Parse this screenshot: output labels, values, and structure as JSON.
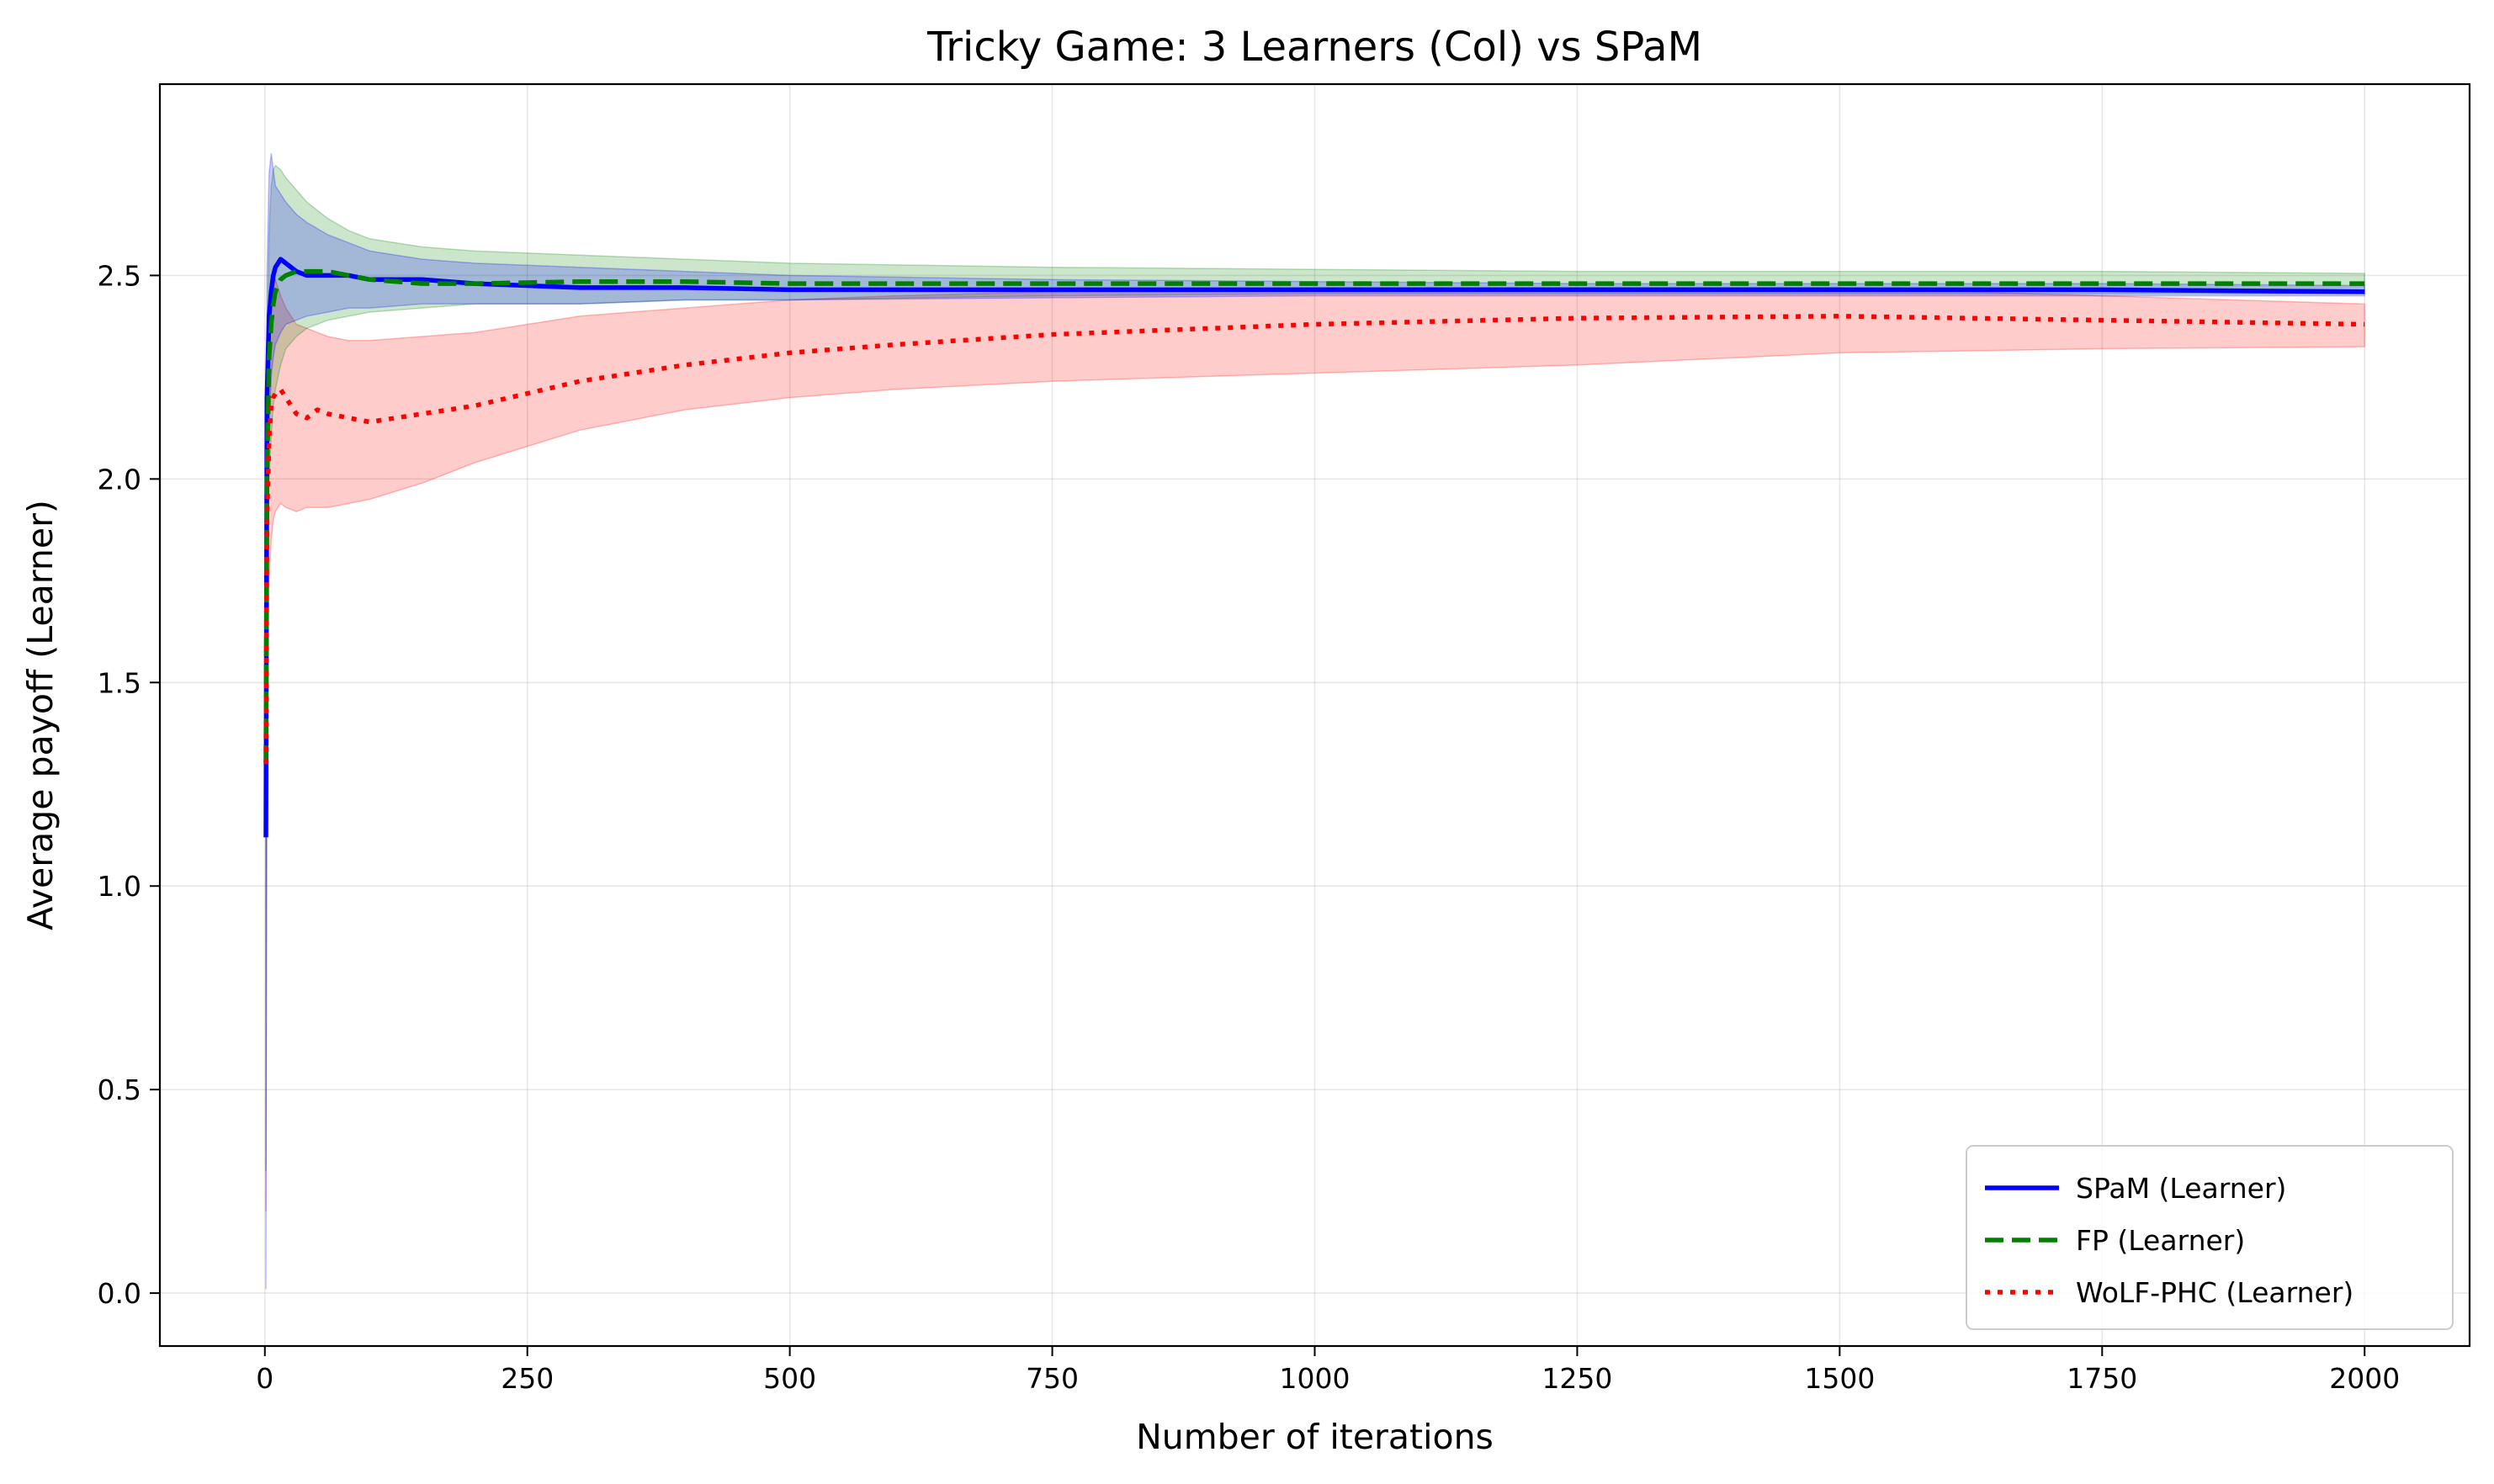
{
  "chart_data": {
    "type": "line",
    "title": "Tricky Game: 3 Learners (Col) vs SPaM",
    "xlabel": "Number of iterations",
    "ylabel": "Average payoff (Learner)",
    "xlim": [
      -100,
      2100
    ],
    "ylim": [
      -0.13,
      2.97
    ],
    "xticks": [
      0,
      250,
      500,
      750,
      1000,
      1250,
      1500,
      1750,
      2000
    ],
    "yticks": [
      0.0,
      0.5,
      1.0,
      1.5,
      2.0,
      2.5
    ],
    "xtick_labels": [
      "0",
      "250",
      "500",
      "750",
      "1000",
      "1250",
      "1500",
      "1750",
      "2000"
    ],
    "ytick_labels": [
      "0.0",
      "0.5",
      "1.0",
      "1.5",
      "2.0",
      "2.5"
    ],
    "grid": true,
    "legend_position": "lower-right",
    "series": [
      {
        "name": "SPaM (Learner)",
        "color": "#0000ff",
        "style": "solid",
        "band_color": "#0000ff",
        "x": [
          1,
          2,
          4,
          6,
          8,
          10,
          15,
          20,
          30,
          40,
          60,
          80,
          100,
          150,
          200,
          300,
          400,
          500,
          750,
          1000,
          1250,
          1500,
          1750,
          2000
        ],
        "y": [
          1.12,
          2.2,
          2.4,
          2.46,
          2.5,
          2.52,
          2.54,
          2.53,
          2.51,
          2.5,
          2.5,
          2.5,
          2.49,
          2.49,
          2.48,
          2.47,
          2.47,
          2.465,
          2.465,
          2.465,
          2.465,
          2.465,
          2.465,
          2.46
        ],
        "upper": [
          1.12,
          2.5,
          2.75,
          2.8,
          2.76,
          2.72,
          2.7,
          2.68,
          2.65,
          2.63,
          2.6,
          2.58,
          2.56,
          2.54,
          2.53,
          2.52,
          2.51,
          2.5,
          2.49,
          2.485,
          2.48,
          2.48,
          2.48,
          2.475
        ],
        "lower": [
          0.01,
          1.6,
          2.1,
          2.25,
          2.3,
          2.33,
          2.36,
          2.38,
          2.39,
          2.4,
          2.41,
          2.42,
          2.42,
          2.43,
          2.43,
          2.43,
          2.44,
          2.44,
          2.445,
          2.45,
          2.45,
          2.45,
          2.45,
          2.45
        ]
      },
      {
        "name": "FP (Learner)",
        "color": "#008000",
        "style": "dashed",
        "band_color": "#008000",
        "x": [
          1,
          2,
          4,
          6,
          8,
          10,
          15,
          20,
          30,
          40,
          60,
          80,
          100,
          150,
          200,
          300,
          400,
          500,
          750,
          1000,
          1250,
          1500,
          1750,
          2000
        ],
        "y": [
          1.3,
          2.0,
          2.3,
          2.38,
          2.43,
          2.46,
          2.49,
          2.5,
          2.51,
          2.51,
          2.51,
          2.5,
          2.49,
          2.48,
          2.48,
          2.485,
          2.485,
          2.48,
          2.48,
          2.48,
          2.48,
          2.48,
          2.48,
          2.48
        ],
        "upper": [
          1.3,
          2.3,
          2.6,
          2.72,
          2.76,
          2.77,
          2.76,
          2.74,
          2.71,
          2.68,
          2.64,
          2.61,
          2.59,
          2.57,
          2.56,
          2.55,
          2.54,
          2.53,
          2.52,
          2.515,
          2.51,
          2.51,
          2.51,
          2.505
        ],
        "lower": [
          0.3,
          1.7,
          2.0,
          2.1,
          2.18,
          2.22,
          2.28,
          2.32,
          2.35,
          2.37,
          2.39,
          2.4,
          2.41,
          2.42,
          2.43,
          2.43,
          2.44,
          2.44,
          2.45,
          2.455,
          2.455,
          2.455,
          2.455,
          2.455
        ]
      },
      {
        "name": "WoLF-PHC (Learner)",
        "color": "#ff0000",
        "style": "dotted",
        "band_color": "#ff0000",
        "x": [
          1,
          2,
          4,
          6,
          8,
          10,
          15,
          20,
          30,
          40,
          50,
          60,
          80,
          100,
          150,
          200,
          250,
          300,
          400,
          500,
          600,
          750,
          1000,
          1250,
          1500,
          1750,
          2000
        ],
        "y": [
          1.3,
          1.9,
          2.1,
          2.18,
          2.2,
          2.21,
          2.22,
          2.2,
          2.16,
          2.15,
          2.17,
          2.16,
          2.15,
          2.14,
          2.16,
          2.18,
          2.21,
          2.24,
          2.28,
          2.31,
          2.33,
          2.355,
          2.38,
          2.395,
          2.4,
          2.39,
          2.38
        ],
        "upper": [
          1.3,
          2.3,
          2.45,
          2.5,
          2.5,
          2.49,
          2.45,
          2.42,
          2.38,
          2.37,
          2.36,
          2.35,
          2.34,
          2.34,
          2.35,
          2.36,
          2.38,
          2.4,
          2.42,
          2.44,
          2.45,
          2.46,
          2.47,
          2.47,
          2.47,
          2.45,
          2.43
        ],
        "lower": [
          0.2,
          1.5,
          1.75,
          1.85,
          1.9,
          1.92,
          1.94,
          1.93,
          1.92,
          1.93,
          1.93,
          1.93,
          1.94,
          1.95,
          1.99,
          2.04,
          2.08,
          2.12,
          2.17,
          2.2,
          2.22,
          2.24,
          2.26,
          2.28,
          2.31,
          2.32,
          2.325
        ]
      }
    ]
  }
}
